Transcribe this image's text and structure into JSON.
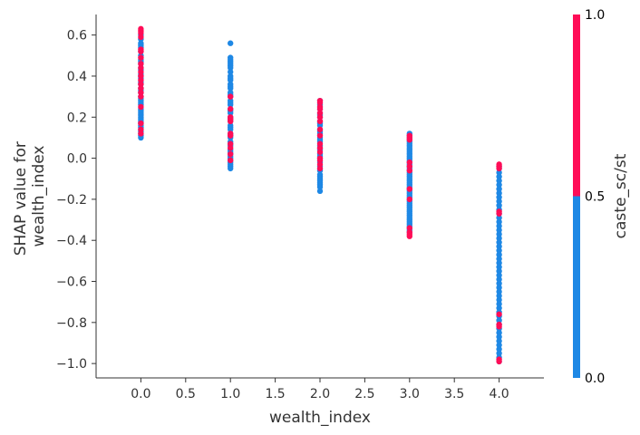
{
  "chart_data": {
    "type": "scatter",
    "xlabel": "wealth_index",
    "ylabel_lines": [
      "SHAP value for",
      "wealth_index"
    ],
    "xlim": [
      -0.5,
      4.5
    ],
    "ylim": [
      -1.07,
      0.7
    ],
    "x_ticks": [
      {
        "value": 0.0,
        "label": "0.0"
      },
      {
        "value": 0.5,
        "label": "0.5"
      },
      {
        "value": 1.0,
        "label": "1.0"
      },
      {
        "value": 1.5,
        "label": "1.5"
      },
      {
        "value": 2.0,
        "label": "2.0"
      },
      {
        "value": 2.5,
        "label": "2.5"
      },
      {
        "value": 3.0,
        "label": "3.0"
      },
      {
        "value": 3.5,
        "label": "3.5"
      },
      {
        "value": 4.0,
        "label": "4.0"
      }
    ],
    "y_ticks": [
      {
        "value": 0.6,
        "label": "0.6"
      },
      {
        "value": 0.4,
        "label": "0.4"
      },
      {
        "value": 0.2,
        "label": "0.2"
      },
      {
        "value": 0.0,
        "label": "0.0"
      },
      {
        "value": -0.2,
        "label": "−0.2"
      },
      {
        "value": -0.4,
        "label": "−0.4"
      },
      {
        "value": -0.6,
        "label": "−0.6"
      },
      {
        "value": -0.8,
        "label": "−0.8"
      },
      {
        "value": -1.0,
        "label": "−1.0"
      }
    ],
    "grid": false,
    "colors": {
      "low": "#1e88e5",
      "high": "#ff0d57"
    },
    "colorbar": {
      "label": "caste_sc/st",
      "ticks": [
        {
          "value": 0.0,
          "label": "0.0"
        },
        {
          "value": 0.5,
          "label": "0.5"
        },
        {
          "value": 1.0,
          "label": "1.0"
        }
      ]
    },
    "series": [
      {
        "x": 0.0,
        "caste_0": [
          0.6,
          0.58,
          0.56,
          0.55,
          0.54,
          0.52,
          0.5,
          0.48,
          0.47,
          0.46,
          0.44,
          0.43,
          0.41,
          0.4,
          0.39,
          0.37,
          0.36,
          0.34,
          0.33,
          0.32,
          0.3,
          0.29,
          0.28,
          0.27,
          0.26,
          0.24,
          0.23,
          0.22,
          0.21,
          0.2,
          0.19,
          0.18,
          0.17,
          0.16,
          0.15,
          0.14,
          0.13,
          0.12,
          0.11,
          0.1
        ],
        "caste_1": [
          0.63,
          0.62,
          0.61,
          0.59,
          0.53,
          0.52,
          0.49,
          0.46,
          0.44,
          0.42,
          0.4,
          0.38,
          0.36,
          0.34,
          0.32,
          0.3,
          0.25,
          0.17,
          0.14,
          0.12
        ]
      },
      {
        "x": 1.0,
        "caste_0": [
          0.56,
          0.49,
          0.48,
          0.47,
          0.46,
          0.45,
          0.44,
          0.42,
          0.4,
          0.39,
          0.38,
          0.36,
          0.35,
          0.34,
          0.32,
          0.31,
          0.3,
          0.28,
          0.27,
          0.26,
          0.24,
          0.23,
          0.22,
          0.2,
          0.19,
          0.18,
          0.16,
          0.15,
          0.14,
          0.12,
          0.11,
          0.1,
          0.08,
          0.07,
          0.06,
          0.04,
          0.03,
          0.02,
          0.01,
          0.0,
          -0.01,
          -0.02,
          -0.03,
          -0.04,
          -0.05
        ],
        "caste_1": [
          0.3,
          0.24,
          0.2,
          0.19,
          0.18,
          0.12,
          0.11,
          0.07,
          0.05,
          0.02,
          -0.01
        ]
      },
      {
        "x": 2.0,
        "caste_0": [
          0.28,
          0.27,
          0.26,
          0.25,
          0.24,
          0.22,
          0.21,
          0.2,
          0.18,
          0.17,
          0.16,
          0.14,
          0.13,
          0.12,
          0.1,
          0.09,
          0.08,
          0.06,
          0.05,
          0.04,
          0.02,
          0.01,
          0.0,
          -0.01,
          -0.02,
          -0.04,
          -0.05,
          -0.06,
          -0.08,
          -0.09,
          -0.1,
          -0.11,
          -0.12,
          -0.13,
          -0.14,
          -0.16
        ],
        "caste_1": [
          0.28,
          0.27,
          0.25,
          0.24,
          0.22,
          0.2,
          0.18,
          0.14,
          0.11,
          0.07,
          0.05,
          0.03,
          0.0,
          -0.01,
          -0.03,
          -0.05
        ]
      },
      {
        "x": 3.0,
        "caste_0": [
          0.12,
          0.11,
          0.1,
          0.09,
          0.08,
          0.07,
          0.06,
          0.05,
          0.04,
          0.03,
          0.02,
          0.01,
          0.0,
          -0.01,
          -0.02,
          -0.03,
          -0.04,
          -0.05,
          -0.06,
          -0.07,
          -0.08,
          -0.09,
          -0.1,
          -0.11,
          -0.12,
          -0.13,
          -0.14,
          -0.15,
          -0.16,
          -0.17,
          -0.18,
          -0.19,
          -0.2,
          -0.21,
          -0.22,
          -0.23,
          -0.24,
          -0.25,
          -0.26,
          -0.27,
          -0.28,
          -0.29,
          -0.3,
          -0.31,
          -0.32,
          -0.33,
          -0.34,
          -0.35,
          -0.36
        ],
        "caste_1": [
          0.11,
          0.1,
          0.09,
          -0.02,
          -0.04,
          -0.06,
          -0.15,
          -0.2,
          -0.34,
          -0.36,
          -0.37,
          -0.38
        ]
      },
      {
        "x": 4.0,
        "caste_0": [
          -0.04,
          -0.05,
          -0.07,
          -0.09,
          -0.11,
          -0.13,
          -0.15,
          -0.17,
          -0.19,
          -0.21,
          -0.23,
          -0.25,
          -0.27,
          -0.29,
          -0.31,
          -0.33,
          -0.35,
          -0.37,
          -0.39,
          -0.41,
          -0.43,
          -0.45,
          -0.47,
          -0.49,
          -0.51,
          -0.53,
          -0.55,
          -0.57,
          -0.59,
          -0.61,
          -0.63,
          -0.65,
          -0.67,
          -0.69,
          -0.71,
          -0.73,
          -0.75,
          -0.77,
          -0.79,
          -0.81,
          -0.83,
          -0.85,
          -0.87,
          -0.89,
          -0.91,
          -0.93,
          -0.95,
          -0.97,
          -0.99
        ],
        "caste_1": [
          -0.03,
          -0.04,
          -0.05,
          -0.26,
          -0.27,
          -0.76,
          -0.81,
          -0.82,
          -0.98,
          -0.99
        ]
      }
    ]
  }
}
